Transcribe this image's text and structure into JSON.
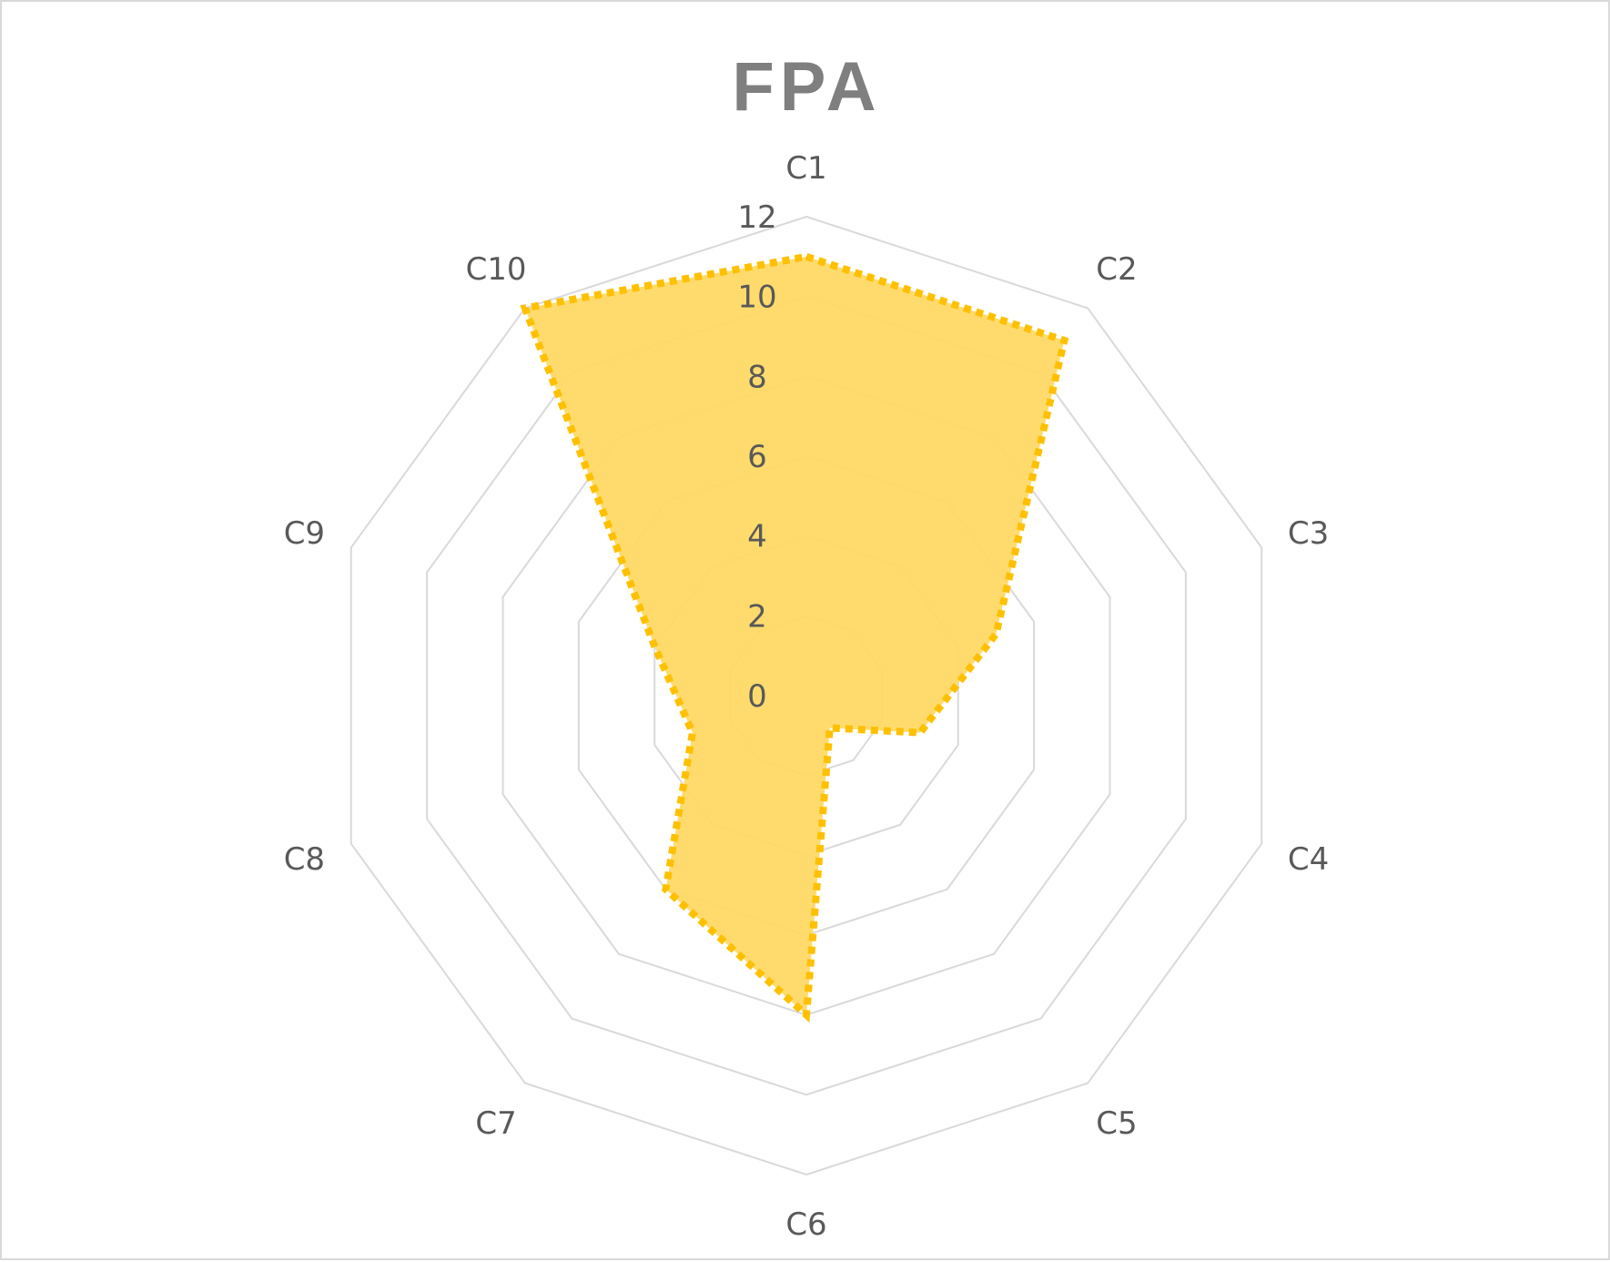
{
  "chart_data": {
    "type": "radar",
    "title": "FPA",
    "categories": [
      "C1",
      "C2",
      "C3",
      "C4",
      "C5",
      "C6",
      "C7",
      "C8",
      "C9",
      "C10"
    ],
    "series": [
      {
        "values": [
          11,
          11,
          5,
          3,
          1,
          8,
          6,
          3,
          4,
          12
        ]
      }
    ],
    "rlim": [
      0,
      12
    ],
    "rticks": [
      0,
      2,
      4,
      6,
      8,
      10,
      12
    ],
    "grid": true,
    "legend": "none",
    "colors": {
      "fill": "#ffd966",
      "line": "#ffc000",
      "grid": "#d9d9d9",
      "text": "#595959",
      "title": "#7f7f7f"
    }
  }
}
